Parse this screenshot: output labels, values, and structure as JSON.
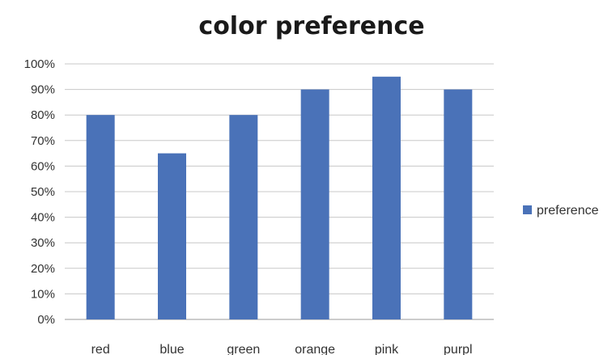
{
  "chart_data": {
    "type": "bar",
    "title": "color preference",
    "categories": [
      "red",
      "blue",
      "green",
      "orange",
      "pink",
      "purpl"
    ],
    "series": [
      {
        "name": "preference",
        "values": [
          0.8,
          0.65,
          0.8,
          0.9,
          0.95,
          0.9
        ]
      }
    ],
    "ylim": [
      0,
      1
    ],
    "y_tick_labels": [
      "0%",
      "10%",
      "20%",
      "30%",
      "40%",
      "50%",
      "60%",
      "70%",
      "80%",
      "90%",
      "100%"
    ],
    "xlabel": "",
    "ylabel": "",
    "grid": true,
    "legend_position": "right",
    "colors": {
      "bar": "#4a72b8",
      "grid": "#c8c8c8"
    }
  }
}
